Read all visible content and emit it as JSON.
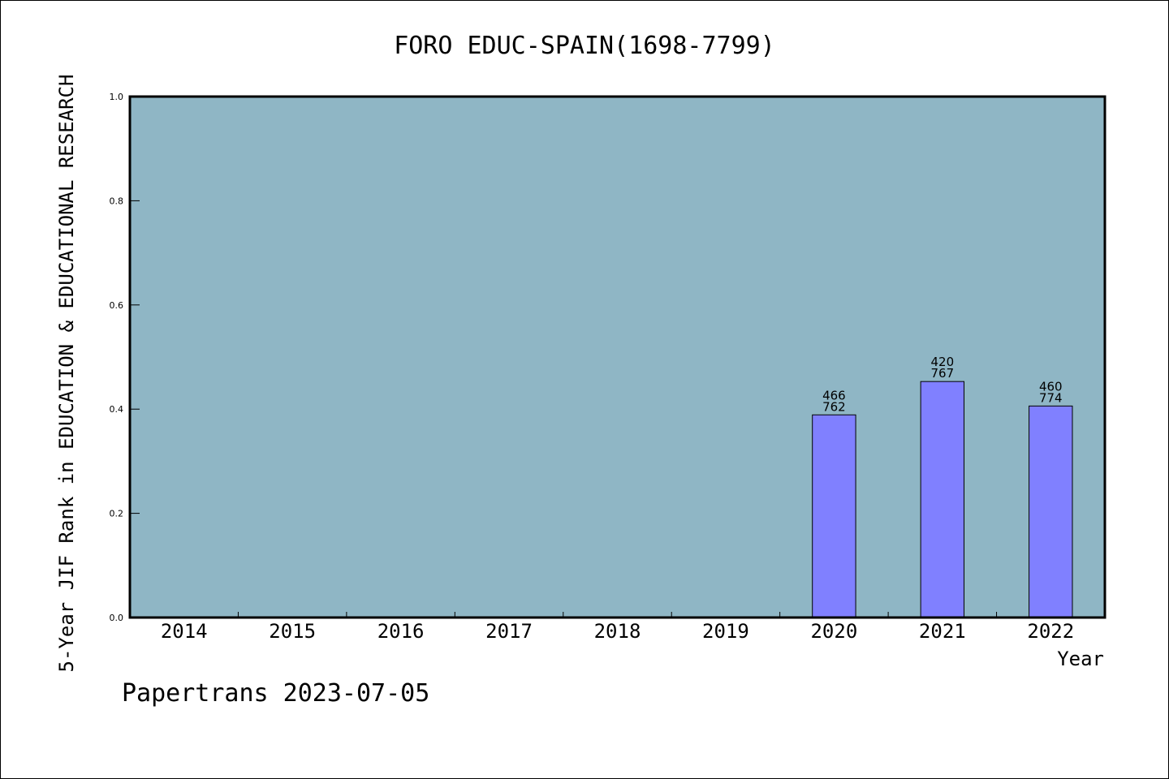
{
  "chart_data": {
    "type": "bar",
    "title": "FORO EDUC-SPAIN(1698-7799)",
    "xlabel": "Year",
    "ylabel": "5-Year JIF Rank in EDUCATION & EDUCATIONAL RESEARCH",
    "categories": [
      "2014",
      "2015",
      "2016",
      "2017",
      "2018",
      "2019",
      "2020",
      "2021",
      "2022"
    ],
    "values": [
      null,
      null,
      null,
      null,
      null,
      null,
      0.389,
      0.453,
      0.406
    ],
    "bar_labels": [
      null,
      null,
      null,
      null,
      null,
      null,
      {
        "rank": "466",
        "total": "762"
      },
      {
        "rank": "420",
        "total": "767"
      },
      {
        "rank": "460",
        "total": "774"
      }
    ],
    "ylim": [
      0,
      1.0
    ],
    "yticks": [
      "0.0",
      "0.2",
      "0.4",
      "0.6",
      "0.8",
      "1.0"
    ],
    "grid": false,
    "colors": {
      "plot_background": "#8fb6c5",
      "bar_fill": "#8080ff",
      "bar_edge": "#000000"
    }
  },
  "footer": "Papertrans 2023-07-05"
}
